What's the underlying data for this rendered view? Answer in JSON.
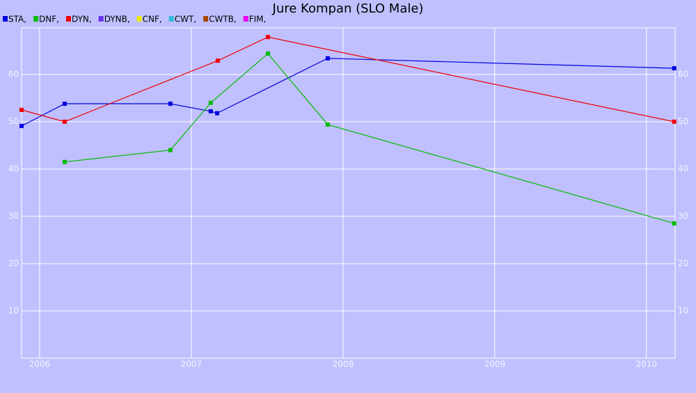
{
  "chart_data": {
    "type": "line",
    "title": "Jure Kompan (SLO Male)",
    "xlim": [
      2005.881,
      2010.189
    ],
    "xticks": [
      2006,
      2007,
      2008,
      2009,
      2010
    ],
    "ylim": [
      0,
      69.85
    ],
    "yticks": [
      10,
      20,
      30,
      40,
      50,
      60
    ],
    "grid": true,
    "series": [
      {
        "name": "STA,",
        "color": "#0000dd",
        "x": [
          2005.881,
          2006.165,
          2006.862,
          2007.128,
          2007.17,
          2007.899,
          2010.183
        ],
        "values": [
          49.1,
          53.8,
          53.8,
          52.2,
          51.8,
          63.4,
          61.3
        ]
      },
      {
        "name": "DNF,",
        "color": "#00bb00",
        "x": [
          2006.165,
          2006.862,
          2007.128,
          2007.505,
          2007.899,
          2010.183
        ],
        "values": [
          41.5,
          44.0,
          54.0,
          64.4,
          49.4,
          28.5
        ]
      },
      {
        "name": "DYN,",
        "color": "#ee0000",
        "x": [
          2005.881,
          2006.165,
          2007.174,
          2007.505,
          2010.183
        ],
        "values": [
          52.5,
          50.0,
          62.9,
          67.9,
          50.0
        ]
      },
      {
        "name": "DYNB,",
        "color": "#6633ee",
        "x": [],
        "values": []
      },
      {
        "name": "CNF,",
        "color": "#eeee00",
        "x": [],
        "values": []
      },
      {
        "name": "CWT,",
        "color": "#33bbdd",
        "x": [],
        "values": []
      },
      {
        "name": "CWTB,",
        "color": "#aa4400",
        "x": [],
        "values": []
      },
      {
        "name": "FIM,",
        "color": "#ee00ee",
        "x": [],
        "values": []
      }
    ]
  }
}
